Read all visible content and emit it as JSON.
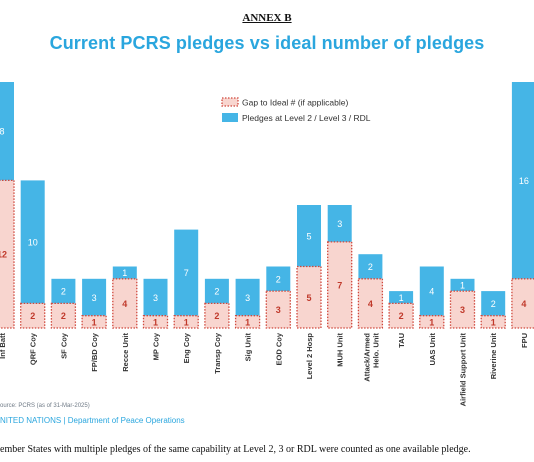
{
  "header": {
    "annex": "ANNEX B",
    "title": "Current PCRS pledges vs ideal number of pledges"
  },
  "legend": {
    "gap_label": "Gap to Ideal #  (if applicable)",
    "pledge_label": "Pledges at Level 2 / Level 3 / RDL"
  },
  "colors": {
    "pledges": "#45b5e6",
    "gap_fill": "#f8d5cf",
    "gap_border": "#d0483c",
    "gap_text": "#c0392b",
    "title": "#2aa6de"
  },
  "chart_data": {
    "type": "bar",
    "stacked": true,
    "categories": [
      "Inf Batt",
      "QRF Coy",
      "SF Coy",
      "FP/BD Coy",
      "Recce Unit",
      "MP Coy",
      "Eng Coy",
      "Transp Coy",
      "Sig Unit",
      "EOD Coy",
      "Level 2 Hosp",
      "MUH Unit",
      "Attack/Armed Helo. Unit",
      "TAU",
      "UAS Unit",
      "Airfield Support Unit",
      "Riverine Unit",
      "FPU"
    ],
    "series": [
      {
        "name": "Gap to Ideal #  (if applicable)",
        "values": [
          12,
          2,
          2,
          1,
          4,
          1,
          1,
          2,
          1,
          3,
          5,
          7,
          4,
          2,
          1,
          3,
          1,
          4
        ]
      },
      {
        "name": "Pledges at Level 2 / Level 3 / RDL",
        "values": [
          8,
          10,
          2,
          3,
          1,
          3,
          7,
          2,
          3,
          2,
          5,
          3,
          2,
          1,
          4,
          1,
          2,
          16
        ]
      }
    ],
    "title": "Current PCRS pledges vs ideal number of pledges",
    "legend_position": "top-right",
    "grid": false
  },
  "footer": {
    "source": "ource: PCRS (as of 31-Mar-2025)",
    "org": "NITED NATIONS | Department of Peace Operations",
    "note": "ember States with multiple pledges of the same capability at Level 2, 3 or RDL were counted as one available pledge."
  }
}
